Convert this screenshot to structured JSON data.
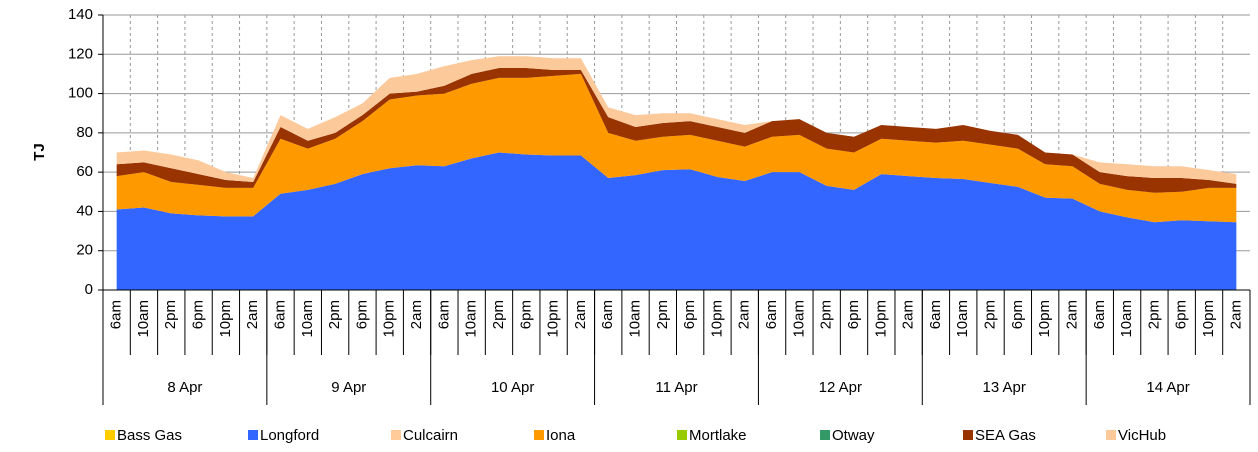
{
  "chart_data": {
    "type": "stacked_area",
    "y_label": "TJ",
    "categories": [
      "6am",
      "10am",
      "2pm",
      "6pm",
      "10pm",
      "2am",
      "6am",
      "10am",
      "2pm",
      "6pm",
      "10pm",
      "2am",
      "6am",
      "10am",
      "2pm",
      "6pm",
      "10pm",
      "2am",
      "6am",
      "10am",
      "2pm",
      "6pm",
      "10pm",
      "2am",
      "6am",
      "10am",
      "2pm",
      "6pm",
      "10pm",
      "2am",
      "6am",
      "10am",
      "2pm",
      "6pm",
      "10pm",
      "2am",
      "6am",
      "10am",
      "2pm",
      "6pm",
      "10pm",
      "2am"
    ],
    "day_labels": [
      "8 Apr",
      "9 Apr",
      "10 Apr",
      "11 Apr",
      "12 Apr",
      "13 Apr",
      "14 Apr"
    ],
    "ylim": [
      0,
      140
    ],
    "yticks": [
      0,
      20,
      40,
      60,
      80,
      100,
      120,
      140
    ],
    "grid": true,
    "series": [
      {
        "name": "Bass Gas",
        "color": "#ffcc00",
        "values": [
          0,
          0,
          0,
          0,
          0,
          0,
          0,
          0,
          0,
          0,
          0,
          0,
          0,
          0,
          0,
          0,
          0,
          0,
          0,
          0,
          0,
          0,
          0,
          0,
          0,
          0,
          0,
          0,
          0,
          0,
          0,
          0,
          0,
          0,
          0,
          0,
          0,
          0,
          0,
          0,
          0,
          0
        ]
      },
      {
        "name": "Longford",
        "color": "#3366ff",
        "values": [
          41,
          42,
          39,
          38,
          37.5,
          37.5,
          49,
          51,
          54,
          59,
          62,
          63.5,
          63,
          67,
          70,
          69,
          68.5,
          68.5,
          57,
          58.5,
          61,
          61.5,
          57.5,
          55.5,
          60,
          60,
          53,
          51,
          59,
          58,
          57,
          56.5,
          54.5,
          52.5,
          47,
          46.5,
          40,
          37,
          34.5,
          35.5,
          35,
          34.5
        ]
      },
      {
        "name": "Culcairn",
        "color": "#ffcc99",
        "values": [
          0,
          0,
          0,
          0,
          0,
          0,
          0,
          0,
          0,
          0,
          0,
          0,
          0,
          0,
          0,
          0,
          0,
          0,
          0,
          0,
          0,
          0,
          0,
          0,
          0,
          0,
          0,
          0,
          0,
          0,
          0,
          0,
          0,
          0,
          0,
          0,
          0,
          0,
          0,
          0,
          0,
          0
        ]
      },
      {
        "name": "Iona",
        "color": "#ff9900",
        "values": [
          17,
          18,
          16,
          15.5,
          14.5,
          14.5,
          28,
          21,
          23,
          27,
          35,
          35.5,
          37,
          38,
          38,
          39,
          40.5,
          41.5,
          23,
          17.5,
          17,
          17.5,
          18.5,
          17.5,
          18,
          19,
          19,
          19,
          18,
          18,
          18,
          19.5,
          19.5,
          19.5,
          17,
          16.5,
          14,
          14,
          15,
          14.5,
          17,
          17.5
        ]
      },
      {
        "name": "Mortlake",
        "color": "#99cc00",
        "values": [
          0,
          0,
          0,
          0,
          0,
          0,
          0,
          0,
          0,
          0,
          0,
          0,
          0,
          0,
          0,
          0,
          0,
          0,
          0,
          0,
          0,
          0,
          0,
          0,
          0,
          0,
          0,
          0,
          0,
          0,
          0,
          0,
          0,
          0,
          0,
          0,
          0,
          0,
          0,
          0,
          0,
          0
        ]
      },
      {
        "name": "Otway",
        "color": "#339966",
        "values": [
          0,
          0,
          0,
          0,
          0,
          0,
          0,
          0,
          0,
          0,
          0,
          0,
          0,
          0,
          0,
          0,
          0,
          0,
          0,
          0,
          0,
          0,
          0,
          0,
          0,
          0,
          0,
          0,
          0,
          0,
          0,
          0,
          0,
          0,
          0,
          0,
          0,
          0,
          0,
          0,
          0,
          0
        ]
      },
      {
        "name": "SEA Gas",
        "color": "#993300",
        "values": [
          6,
          5,
          7,
          5.5,
          4,
          3,
          6,
          4,
          3,
          3,
          3,
          2,
          4,
          5,
          5,
          5,
          3,
          2,
          8,
          7,
          7,
          7,
          7,
          7,
          8,
          8,
          8,
          8,
          7,
          7,
          7,
          8,
          7,
          7,
          6,
          6,
          6,
          7,
          7.5,
          7,
          4,
          2
        ]
      },
      {
        "name": "VicHub",
        "color": "#fcc99b",
        "values": [
          6,
          6,
          7,
          7,
          4,
          2,
          6,
          6,
          8,
          6,
          8,
          9,
          10,
          7,
          6,
          6,
          6,
          6,
          5,
          6,
          5,
          4,
          4,
          4,
          0,
          0,
          0,
          0,
          0,
          0,
          0,
          0,
          0,
          0,
          0,
          0,
          5,
          6,
          6,
          6,
          5,
          5
        ]
      }
    ]
  }
}
